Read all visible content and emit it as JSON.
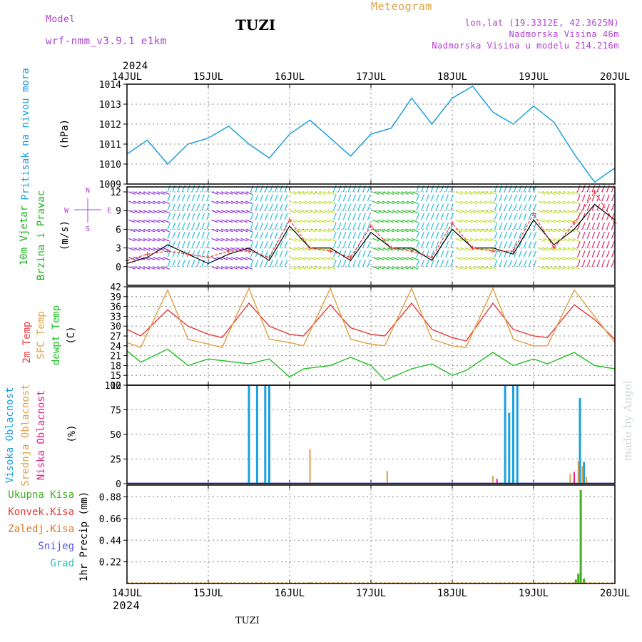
{
  "header": {
    "model_label": "Model",
    "model_value": "wrf-nmm_v3.9.1 e1km",
    "station": "TUZI",
    "meteogram": "Meteogram",
    "lonlat": "lon,lat (19.3312E, 42.3625N)",
    "altitude": "Nadmorska Visina 46m",
    "model_altitude": "Nadmorska Visina u modelu 214.216m",
    "year_top": "2024",
    "year_bottom": "2024",
    "footer_station": "TUZI",
    "credit": "made by Angel"
  },
  "colors": {
    "pressure": "#1aa0e0",
    "temp2m": "#e83a3a",
    "sfc": "#e0a040",
    "dewpt": "#20c020",
    "high_cloud": "#1aa0e0",
    "mid_cloud": "#e0a040",
    "low_cloud": "#e0208a",
    "total_precip": "#40b020",
    "conv_precip": "#e83a3a",
    "frz_precip": "#e07820",
    "snow": "#5050e0",
    "hail": "#20c0c0",
    "wind_dir": "#b040d0",
    "wind_speed": "#20b020"
  },
  "chart_data": [
    {
      "type": "line",
      "panel": "pressure",
      "ylabel_lines": [
        "Pritisak na nivou mora",
        "(hPa)"
      ],
      "ylim": [
        1009,
        1014
      ],
      "yticks": [
        1009,
        1010,
        1011,
        1012,
        1013,
        1014
      ],
      "xlim_days": [
        14,
        20
      ],
      "xticks": [
        "14JUL",
        "15JUL",
        "16JUL",
        "17JUL",
        "18JUL",
        "19JUL",
        "20JUL"
      ],
      "grid": true,
      "series": [
        {
          "x_days": [
            14.0,
            14.25,
            14.5,
            14.75,
            15.0,
            15.25,
            15.5,
            15.75,
            16.0,
            16.25,
            16.5,
            16.75,
            17.0,
            17.25,
            17.5,
            17.75,
            18.0,
            18.25,
            18.5,
            18.75,
            19.0,
            19.25,
            19.5,
            19.75,
            20.0
          ],
          "values": [
            1010.5,
            1011.2,
            1010.0,
            1011.0,
            1011.3,
            1011.9,
            1011.0,
            1010.3,
            1011.5,
            1012.2,
            1011.3,
            1010.4,
            1011.5,
            1011.8,
            1013.3,
            1012.0,
            1013.3,
            1013.9,
            1012.6,
            1012.0,
            1012.9,
            1012.1,
            1010.5,
            1009.1,
            1009.8
          ]
        }
      ]
    },
    {
      "type": "line",
      "panel": "wind",
      "ylabel_lines": [
        "10m Vjetar",
        "Brzina i Pravac",
        "(m/s)"
      ],
      "compass": [
        "N",
        "S",
        "W",
        "E"
      ],
      "ylim": [
        -3,
        12.8
      ],
      "yticks": [
        0,
        3,
        6,
        9,
        12
      ],
      "grid": true,
      "series": [
        {
          "name": "wind_speed",
          "x_days": [
            14.0,
            14.25,
            14.5,
            14.75,
            15.0,
            15.25,
            15.5,
            15.75,
            16.0,
            16.25,
            16.5,
            16.75,
            17.0,
            17.25,
            17.5,
            17.75,
            18.0,
            18.25,
            18.5,
            18.75,
            19.0,
            19.25,
            19.5,
            19.75,
            20.0
          ],
          "values": [
            0.5,
            1.5,
            3.5,
            2.0,
            0.5,
            2.0,
            3.0,
            1.0,
            6.5,
            3.0,
            3.0,
            1.0,
            5.5,
            3.0,
            3.0,
            1.0,
            6.0,
            3.0,
            3.0,
            2.0,
            7.5,
            3.5,
            6.0,
            10.0,
            7.5
          ]
        },
        {
          "name": "gust",
          "x_days": [
            14.0,
            14.25,
            14.5,
            14.75,
            15.0,
            15.25,
            15.5,
            15.75,
            16.0,
            16.25,
            16.5,
            16.75,
            17.0,
            17.25,
            17.5,
            17.75,
            18.0,
            18.25,
            18.5,
            18.75,
            19.0,
            19.25,
            19.5,
            19.75,
            20.0
          ],
          "values": [
            1.0,
            2.0,
            2.5,
            2.0,
            1.5,
            2.5,
            2.5,
            1.5,
            7.5,
            3.0,
            2.5,
            1.5,
            6.5,
            3.0,
            2.5,
            1.5,
            7.0,
            3.0,
            2.5,
            2.5,
            8.5,
            3.0,
            7.0,
            12.0,
            7.0
          ]
        }
      ]
    },
    {
      "type": "line",
      "panel": "temperature",
      "ylabel_lines": [
        "2m Temp",
        "SFC Temp",
        "dewpt Temp",
        "(C)"
      ],
      "ylim": [
        12,
        42
      ],
      "yticks": [
        12,
        15,
        18,
        21,
        24,
        27,
        30,
        33,
        36,
        39,
        42
      ],
      "grid": true,
      "series": [
        {
          "name": "2m Temp",
          "x_days": [
            14.0,
            14.17,
            14.5,
            14.75,
            15.0,
            15.17,
            15.5,
            15.75,
            16.0,
            16.17,
            16.5,
            16.75,
            17.0,
            17.17,
            17.5,
            17.75,
            18.0,
            18.17,
            18.5,
            18.75,
            19.0,
            19.17,
            19.5,
            19.75,
            20.0
          ],
          "values": [
            29,
            27,
            35,
            30,
            27.5,
            26.5,
            37,
            30,
            27.5,
            27,
            36.5,
            29.5,
            27.5,
            27,
            37,
            29,
            26.5,
            25.5,
            37,
            29,
            27,
            26.5,
            36.5,
            32,
            26
          ]
        },
        {
          "name": "SFC Temp",
          "x_days": [
            14.0,
            14.17,
            14.5,
            14.75,
            15.0,
            15.17,
            15.5,
            15.75,
            16.0,
            16.17,
            16.5,
            16.75,
            17.0,
            17.17,
            17.5,
            17.75,
            18.0,
            18.17,
            18.5,
            18.75,
            19.0,
            19.17,
            19.5,
            19.75,
            20.0
          ],
          "values": [
            25,
            23.5,
            41,
            26,
            24.5,
            23.5,
            41.5,
            26,
            25,
            24,
            41.5,
            26,
            24.5,
            24,
            41.5,
            26,
            24,
            23.5,
            41.5,
            26,
            24,
            24,
            41,
            33,
            25
          ]
        },
        {
          "name": "dewpt Temp",
          "x_days": [
            14.0,
            14.17,
            14.5,
            14.75,
            15.0,
            15.17,
            15.5,
            15.75,
            16.0,
            16.17,
            16.5,
            16.75,
            17.0,
            17.17,
            17.5,
            17.75,
            18.0,
            18.17,
            18.5,
            18.75,
            19.0,
            19.17,
            19.5,
            19.75,
            20.0
          ],
          "values": [
            22.5,
            19,
            23,
            18,
            20,
            19.5,
            18.5,
            20,
            14.5,
            17,
            18,
            20.5,
            18,
            13.5,
            17,
            18.5,
            15,
            16.5,
            22,
            18,
            20,
            18.5,
            22,
            18,
            17
          ]
        }
      ]
    },
    {
      "type": "bar",
      "panel": "cloudiness",
      "ylabel_lines": [
        "Visoka Oblacnost",
        "Srednja Oblacnost",
        "Niska Oblacnost",
        "(%)"
      ],
      "ylim": [
        0,
        100
      ],
      "yticks": [
        0,
        25,
        50,
        75,
        100
      ],
      "grid": true,
      "series": [
        {
          "name": "Visoka Oblacnost",
          "x_days": [
            15.5,
            15.6,
            15.7,
            15.75,
            18.65,
            18.7,
            18.75,
            18.8,
            19.57,
            19.62
          ],
          "values": [
            100,
            100,
            100,
            100,
            100,
            72,
            100,
            100,
            87,
            22
          ]
        },
        {
          "name": "Srednja Oblacnost",
          "x_days": [
            16.25,
            17.2,
            18.5,
            19.45,
            19.55,
            19.6,
            19.65
          ],
          "values": [
            35,
            13,
            8,
            10,
            23,
            18,
            7
          ]
        },
        {
          "name": "Niska Oblacnost",
          "x_days": [
            18.55,
            19.5
          ],
          "values": [
            5,
            12
          ]
        }
      ]
    },
    {
      "type": "bar",
      "panel": "precipitation",
      "ylabel_lines": [
        "1hr Precip (mm)"
      ],
      "legend": [
        "Ukupna Kisa",
        "Konvek.Kisa",
        "Zaledj.Kisa",
        "Snijeg",
        "Grad"
      ],
      "ylim": [
        0,
        1.0
      ],
      "yticks": [
        0.22,
        0.44,
        0.66,
        0.88
      ],
      "grid": true,
      "series": [
        {
          "name": "Ukupna Kisa",
          "x_days": [
            16.25,
            19.52,
            19.55,
            19.58,
            19.62
          ],
          "values": [
            0.01,
            0.04,
            0.1,
            0.95,
            0.05
          ]
        }
      ]
    }
  ]
}
